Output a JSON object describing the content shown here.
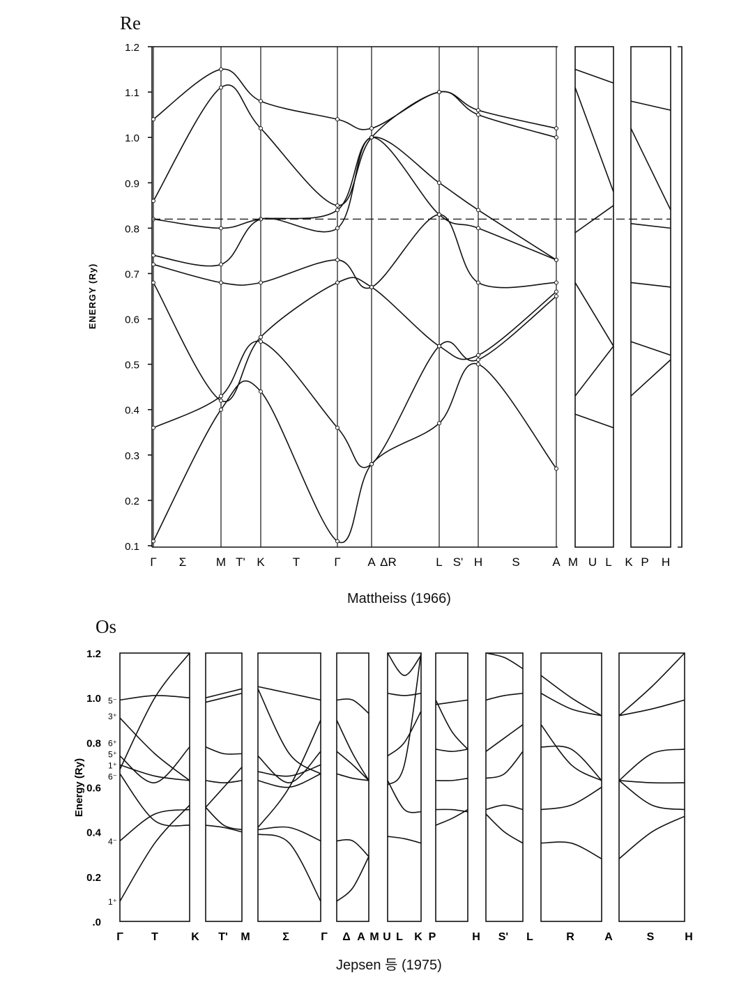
{
  "chart_data": [
    {
      "type": "line",
      "title": "Re",
      "caption": "Mattheiss (1966)",
      "ylabel": "ENERGY (Ry)",
      "ylim": [
        0.1,
        1.2
      ],
      "yticks": [
        "0.1",
        "0.2",
        "0.3",
        "0.4",
        "0.5",
        "0.6",
        "0.7",
        "0.8",
        "0.9",
        "1.0",
        "1.1",
        "1.2"
      ],
      "xticks": [
        "Γ",
        "Σ",
        "M",
        "T'",
        "K",
        "T",
        "Γ",
        "A",
        "ΔR",
        "L",
        "S'",
        "H",
        "S",
        "A",
        "M",
        "U",
        "L",
        "K",
        "P",
        "H"
      ],
      "fermi_level": 0.82,
      "main_panel": {
        "k_points": [
          "Γ",
          "M",
          "K",
          "Γ",
          "A",
          "L",
          "H",
          "A"
        ],
        "bands": [
          [
            0.11,
            0.4,
            0.44,
            0.11,
            0.28,
            0.37,
            0.5,
            0.27
          ],
          [
            0.36,
            0.43,
            0.55,
            0.36,
            0.28,
            0.54,
            0.51,
            0.65
          ],
          [
            0.68,
            0.42,
            0.56,
            0.68,
            0.67,
            0.54,
            0.52,
            0.66
          ],
          [
            0.72,
            0.68,
            0.68,
            0.73,
            0.67,
            0.83,
            0.68,
            0.68
          ],
          [
            0.74,
            0.72,
            0.82,
            0.8,
            1.0,
            0.83,
            0.8,
            0.73
          ],
          [
            0.82,
            0.8,
            0.82,
            0.84,
            1.0,
            0.9,
            0.84,
            0.73
          ],
          [
            0.86,
            1.11,
            1.02,
            0.85,
            1.0,
            1.1,
            1.05,
            1.0
          ],
          [
            1.04,
            1.15,
            1.08,
            1.04,
            1.02,
            1.1,
            1.06,
            1.02
          ]
        ]
      },
      "side_panels": [
        {
          "k_points": [
            "A",
            "L"
          ],
          "bands": [
            [
              1.15,
              1.12
            ],
            [
              1.11,
              0.88
            ],
            [
              0.79,
              0.85
            ],
            [
              0.68,
              0.54
            ],
            [
              0.43,
              0.54
            ],
            [
              0.39,
              0.36
            ]
          ]
        },
        {
          "k_points": [
            "K",
            "H"
          ],
          "bands": [
            [
              1.08,
              1.06
            ],
            [
              1.02,
              0.84
            ],
            [
              0.81,
              0.8
            ],
            [
              0.68,
              0.67
            ],
            [
              0.55,
              0.52
            ],
            [
              0.43,
              0.51
            ]
          ]
        }
      ]
    },
    {
      "type": "line",
      "title": "Os",
      "caption": "Jepsen 등 (1975)",
      "ylabel": "Energy (Ry)",
      "ylim": [
        0.0,
        1.2
      ],
      "yticks": [
        ".0",
        "0.2",
        "0.4",
        "0.6",
        "0.8",
        "1.0",
        "1.2"
      ],
      "xticks": [
        "Γ",
        "T",
        "K",
        "T'",
        "M",
        "Σ",
        "Γ",
        "Δ",
        "A",
        "M",
        "U",
        "L",
        "K",
        "P",
        "H",
        "S'",
        "L",
        "R",
        "A",
        "S",
        "H"
      ],
      "gamma_labels": [
        "5⁻",
        "3⁺",
        "6⁺",
        "5⁺",
        "1⁺",
        "6⁻",
        "4⁻",
        "1⁺"
      ],
      "panels": [
        {
          "k_points": [
            "Γ",
            "K"
          ],
          "bands": [
            [
              0.09,
              0.35,
              0.52
            ],
            [
              0.36,
              0.48,
              0.5
            ],
            [
              0.66,
              0.45,
              0.43
            ],
            [
              0.7,
              0.65,
              0.63
            ],
            [
              0.74,
              0.62,
              0.78
            ],
            [
              0.99,
              1.01,
              1.0
            ],
            [
              0.91,
              0.75,
              0.63
            ],
            [
              0.68,
              1.0,
              1.2
            ]
          ]
        },
        {
          "k_points": [
            "K",
            "M"
          ],
          "bands": [
            [
              0.43,
              0.42,
              0.4
            ],
            [
              0.51,
              0.43,
              0.41
            ],
            [
              0.63,
              0.62,
              0.63
            ],
            [
              0.78,
              0.75,
              0.75
            ],
            [
              1.0,
              1.02,
              1.04
            ],
            [
              0.98,
              1.0,
              1.02
            ],
            [
              0.51,
              0.6,
              0.69
            ]
          ]
        },
        {
          "k_points": [
            "M",
            "Γ"
          ],
          "bands": [
            [
              0.39,
              0.35,
              0.09
            ],
            [
              0.41,
              0.42,
              0.36
            ],
            [
              0.42,
              0.6,
              0.9
            ],
            [
              0.63,
              0.6,
              0.66
            ],
            [
              0.67,
              0.65,
              0.7
            ],
            [
              0.74,
              0.62,
              0.76
            ],
            [
              1.05,
              1.02,
              0.99
            ],
            [
              1.04,
              0.75,
              0.66
            ]
          ]
        },
        {
          "k_points": [
            "Γ",
            "A"
          ],
          "bands": [
            [
              0.09,
              0.15,
              0.29
            ],
            [
              0.36,
              0.36,
              0.29
            ],
            [
              0.99,
              0.99,
              0.93
            ],
            [
              0.9,
              0.75,
              0.63
            ],
            [
              0.76,
              0.7,
              0.63
            ],
            [
              0.66,
              0.64,
              0.63
            ]
          ]
        },
        {
          "k_points": [
            "A",
            "L"
          ],
          "bands": [
            [
              0.38,
              0.37,
              0.35
            ],
            [
              0.63,
              0.5,
              0.49
            ],
            [
              0.74,
              0.8,
              0.94
            ],
            [
              0.61,
              0.7,
              1.2
            ],
            [
              1.02,
              1.01,
              1.02
            ],
            [
              1.2,
              1.1,
              1.19
            ]
          ]
        },
        {
          "k_points": [
            "L",
            "H"
          ],
          "bands": [
            [
              0.43,
              0.46,
              0.5
            ],
            [
              0.5,
              0.5,
              0.49
            ],
            [
              0.63,
              0.63,
              0.64
            ],
            [
              0.77,
              0.76,
              0.77
            ],
            [
              0.97,
              0.98,
              0.99
            ],
            [
              0.99,
              0.85,
              0.77
            ]
          ]
        },
        {
          "k_points": [
            "H",
            "L"
          ],
          "bands": [
            [
              0.48,
              0.4,
              0.35
            ],
            [
              0.5,
              0.52,
              0.5
            ],
            [
              0.64,
              0.66,
              0.76
            ],
            [
              0.76,
              0.82,
              0.88
            ],
            [
              0.99,
              1.01,
              1.02
            ],
            [
              1.2,
              1.18,
              1.13
            ]
          ]
        },
        {
          "k_points": [
            "L",
            "A"
          ],
          "bands": [
            [
              0.35,
              0.35,
              0.28
            ],
            [
              0.5,
              0.52,
              0.6
            ],
            [
              0.88,
              0.7,
              0.63
            ],
            [
              0.78,
              0.77,
              0.63
            ],
            [
              1.02,
              0.95,
              0.92
            ],
            [
              1.1,
              1.0,
              0.92
            ]
          ]
        },
        {
          "k_points": [
            "A",
            "H"
          ],
          "bands": [
            [
              0.28,
              0.4,
              0.47
            ],
            [
              0.63,
              0.52,
              0.5
            ],
            [
              0.63,
              0.62,
              0.62
            ],
            [
              0.63,
              0.75,
              0.77
            ],
            [
              0.92,
              0.95,
              0.99
            ],
            [
              0.92,
              1.05,
              1.2
            ]
          ]
        }
      ]
    }
  ]
}
